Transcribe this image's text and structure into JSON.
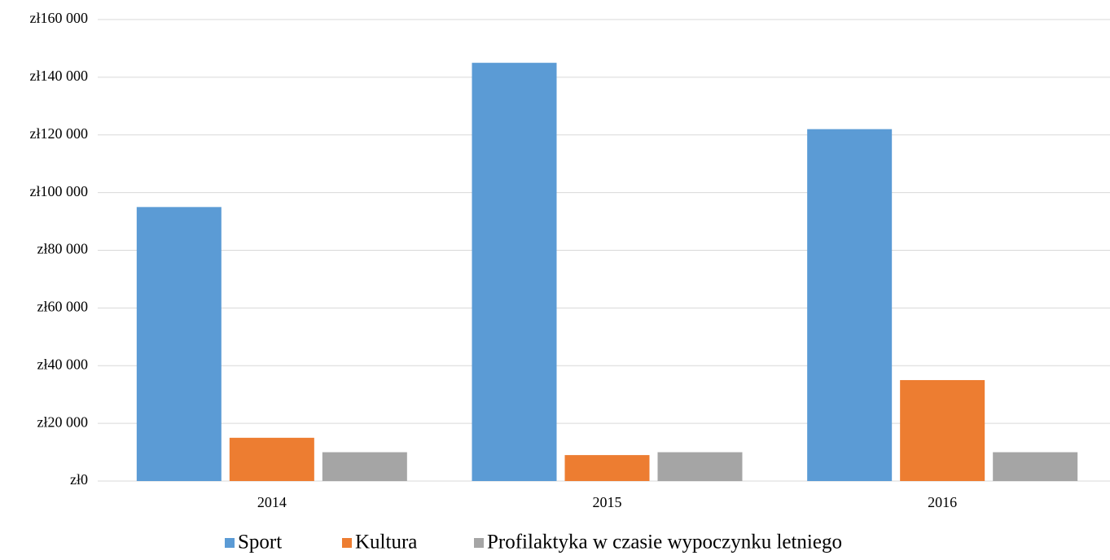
{
  "chart_data": {
    "type": "bar",
    "categories": [
      "2014",
      "2015",
      "2016"
    ],
    "series": [
      {
        "name": "Sport",
        "color": "#5b9bd5",
        "values": [
          95000,
          145000,
          122000
        ]
      },
      {
        "name": "Kultura",
        "color": "#ed7d31",
        "values": [
          15000,
          9000,
          35000
        ]
      },
      {
        "name": "Profilaktyka w czasie wypoczynku letniego",
        "color": "#a5a5a5",
        "values": [
          10000,
          10000,
          10000
        ]
      }
    ],
    "ylim": [
      0,
      160000
    ],
    "yticks": [
      {
        "value": 0,
        "label": "zł0"
      },
      {
        "value": 20000,
        "label": "zł20 000"
      },
      {
        "value": 40000,
        "label": "zł40 000"
      },
      {
        "value": 60000,
        "label": "zł60 000"
      },
      {
        "value": 80000,
        "label": "zł80 000"
      },
      {
        "value": 100000,
        "label": "zł100 000"
      },
      {
        "value": 120000,
        "label": "zł120 000"
      },
      {
        "value": 140000,
        "label": "zł140 000"
      },
      {
        "value": 160000,
        "label": "zł160 000"
      }
    ],
    "grid": true,
    "legend": "bottom"
  }
}
